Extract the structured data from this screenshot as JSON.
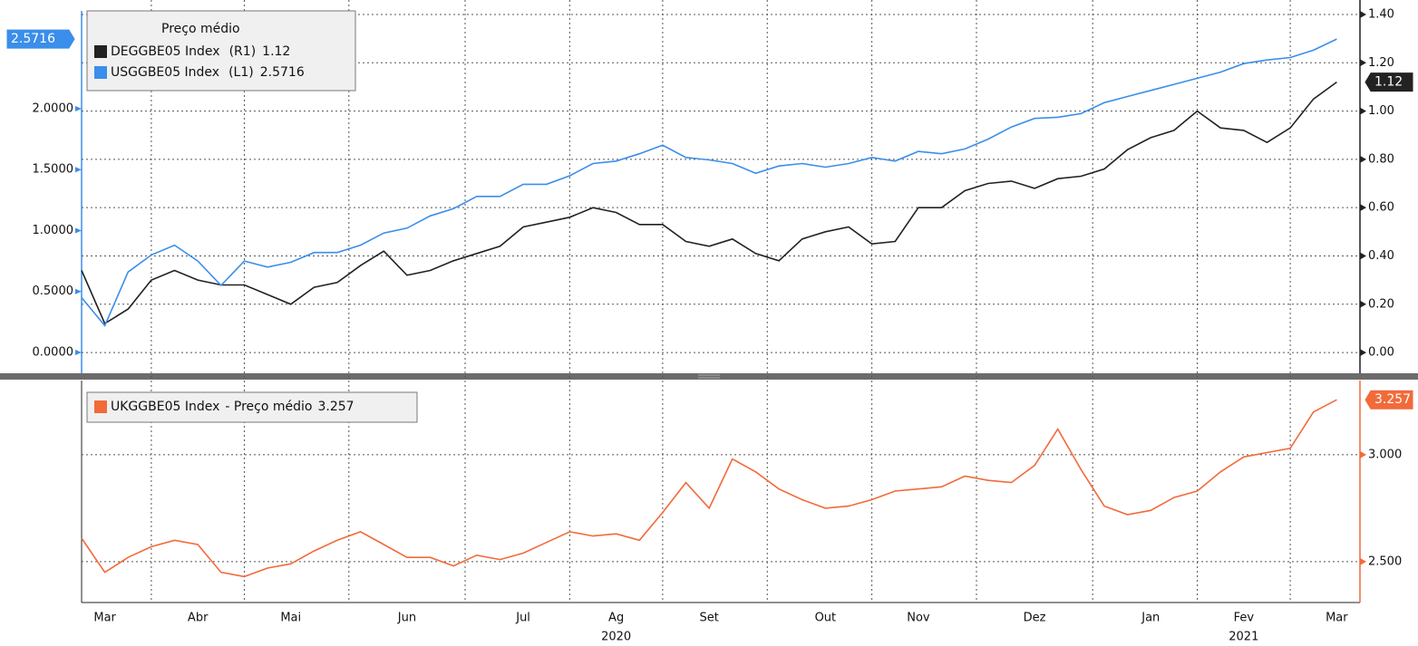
{
  "chart_data": [
    {
      "type": "line",
      "legend_title": "Preço médio",
      "grid": "y2",
      "ylim": [
        -0.171,
        2.892
      ],
      "yticks": [
        {
          "value": 0,
          "label": "0.0000"
        },
        {
          "value": 0.5,
          "label": "0.5000"
        },
        {
          "value": 1,
          "label": "1.0000"
        },
        {
          "value": 1.5,
          "label": "1.5000"
        },
        {
          "value": 2,
          "label": "2.0000"
        }
      ],
      "y2lim": [
        -0.086,
        1.46
      ],
      "y2ticks": [
        {
          "value": 0,
          "label": "0.00"
        },
        {
          "value": 0.2,
          "label": "0.20"
        },
        {
          "value": 0.4,
          "label": "0.40"
        },
        {
          "value": 0.6,
          "label": "0.60"
        },
        {
          "value": 0.8,
          "label": "0.80"
        },
        {
          "value": 1,
          "label": "1.00"
        },
        {
          "value": 1.2,
          "label": "1.20"
        },
        {
          "value": 1.4,
          "label": "1.40"
        }
      ],
      "series": [
        {
          "name": "DEGGBE05 Index",
          "axis_tag": "(R1)",
          "last_label": "1.12",
          "color": "#222222",
          "axis": "y2",
          "values": [
            0.34,
            0.12,
            0.18,
            0.3,
            0.34,
            0.3,
            0.28,
            0.28,
            0.24,
            0.2,
            0.27,
            0.29,
            0.36,
            0.42,
            0.32,
            0.34,
            0.38,
            0.41,
            0.44,
            0.52,
            0.54,
            0.56,
            0.6,
            0.58,
            0.53,
            0.53,
            0.46,
            0.44,
            0.47,
            0.41,
            0.38,
            0.47,
            0.5,
            0.52,
            0.45,
            0.46,
            0.6,
            0.6,
            0.67,
            0.7,
            0.71,
            0.68,
            0.72,
            0.73,
            0.76,
            0.84,
            0.89,
            0.92,
            1.0,
            0.93,
            0.92,
            0.87,
            0.93,
            1.05,
            1.12,
            null
          ]
        },
        {
          "name": "USGGBE05 Index",
          "axis_tag": "(L1)",
          "last_label": "2.5716",
          "color": "#3b8eea",
          "axis": "y",
          "values": [
            0.45,
            0.22,
            0.66,
            0.8,
            0.88,
            0.75,
            0.55,
            0.75,
            0.7,
            0.74,
            0.82,
            0.82,
            0.88,
            0.98,
            1.02,
            1.12,
            1.18,
            1.28,
            1.28,
            1.38,
            1.38,
            1.45,
            1.55,
            1.57,
            1.63,
            1.7,
            1.6,
            1.58,
            1.55,
            1.47,
            1.53,
            1.55,
            1.52,
            1.55,
            1.6,
            1.57,
            1.65,
            1.63,
            1.67,
            1.75,
            1.85,
            1.92,
            1.93,
            1.96,
            2.05,
            2.1,
            2.15,
            2.2,
            2.25,
            2.3,
            2.37,
            2.4,
            2.42,
            2.48,
            2.5716,
            null
          ]
        }
      ]
    },
    {
      "type": "line",
      "grid": "y2",
      "categories": [
        null,
        "Mar",
        null,
        null,
        null,
        "Abr",
        null,
        null,
        null,
        "Mai",
        null,
        null,
        null,
        null,
        "Jun",
        null,
        null,
        null,
        null,
        "Jul",
        null,
        null,
        null,
        "Ag",
        null,
        null,
        null,
        "Set",
        null,
        null,
        null,
        null,
        "Out",
        null,
        null,
        null,
        "Nov",
        null,
        null,
        null,
        null,
        "Dez",
        null,
        null,
        null,
        null,
        "Jan",
        null,
        null,
        null,
        "Fev",
        null,
        null,
        null,
        "Mar",
        null
      ],
      "year_labels": [
        null,
        null,
        null,
        null,
        null,
        null,
        null,
        null,
        null,
        null,
        null,
        null,
        null,
        null,
        null,
        null,
        null,
        null,
        null,
        null,
        null,
        null,
        null,
        "2020",
        null,
        null,
        null,
        null,
        null,
        null,
        null,
        null,
        null,
        null,
        null,
        null,
        null,
        null,
        null,
        null,
        null,
        null,
        null,
        null,
        null,
        null,
        null,
        null,
        null,
        null,
        "2021",
        null,
        null,
        null,
        null,
        null
      ],
      "y2lim": [
        2.309,
        3.347
      ],
      "y2ticks": [
        {
          "value": 2.5,
          "label": "2.500"
        },
        {
          "value": 3,
          "label": "3.000"
        }
      ],
      "series": [
        {
          "name": "UKGGBE05 Index",
          "legend_suffix": "- Preço médio",
          "last_label": "3.257",
          "color": "#f26a3a",
          "axis": "y2",
          "values": [
            2.61,
            2.45,
            2.52,
            2.57,
            2.6,
            2.58,
            2.45,
            2.43,
            2.47,
            2.49,
            2.55,
            2.6,
            2.64,
            2.58,
            2.52,
            2.52,
            2.48,
            2.53,
            2.51,
            2.54,
            2.59,
            2.64,
            2.62,
            2.63,
            2.6,
            2.73,
            2.87,
            2.75,
            2.98,
            2.92,
            2.84,
            2.79,
            2.75,
            2.76,
            2.79,
            2.83,
            2.84,
            2.85,
            2.9,
            2.88,
            2.87,
            2.95,
            3.12,
            2.93,
            2.76,
            2.72,
            2.74,
            2.8,
            2.83,
            2.92,
            2.99,
            3.01,
            3.03,
            3.2,
            3.257,
            null
          ]
        }
      ]
    }
  ]
}
